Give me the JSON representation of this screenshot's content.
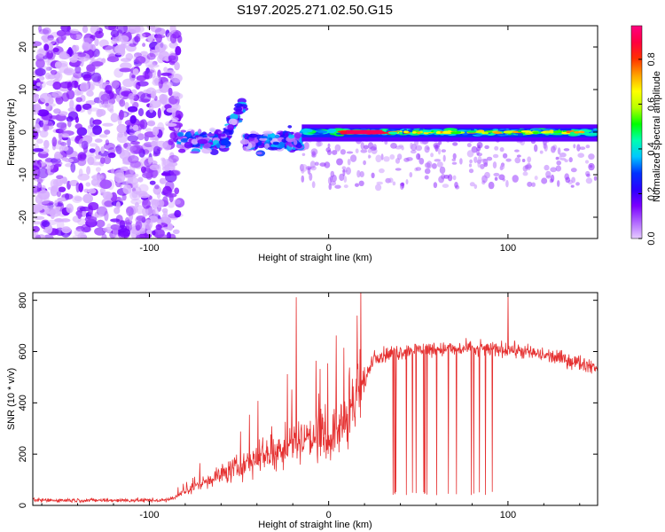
{
  "figure_title": "S197.2025.271.02.50.G15",
  "chart_data": [
    {
      "type": "heatmap",
      "title": "S197.2025.271.02.50.G15",
      "xlabel": "Height of straight line (km)",
      "ylabel": "Frequency (Hz)",
      "xlim": [
        -165,
        150
      ],
      "ylim": [
        -25,
        25
      ],
      "xticks": [
        -100,
        0,
        100
      ],
      "yticks": [
        -20,
        -10,
        0,
        10,
        20
      ],
      "colorbar": {
        "label": "Normalized spectral amplitude",
        "range": [
          0.0,
          0.95
        ],
        "ticks": [
          "0.0",
          "0.2",
          "0.4",
          "0.6",
          "0.8"
        ],
        "tick_values": [
          0.0,
          0.2,
          0.4,
          0.6,
          0.8
        ],
        "colormap": [
          "#e6ccff",
          "#b066ff",
          "#7a00ff",
          "#2a00ff",
          "#0033ff",
          "#00c8ff",
          "#00ffb0",
          "#00ff00",
          "#b8ff00",
          "#ffff00",
          "#ffa000",
          "#ff3000",
          "#ff0040",
          "#ff0080"
        ]
      },
      "regions": [
        {
          "name": "noise",
          "x_range": [
            -165,
            -83
          ],
          "freq_range": [
            -25,
            25
          ],
          "amplitude": 0.05
        },
        {
          "name": "turbulent",
          "x_range": [
            -83,
            -15
          ],
          "freq_center": -2,
          "freq_spread": 4,
          "amplitude": 0.25
        },
        {
          "name": "stable-line",
          "x_range": [
            -15,
            150
          ],
          "freq_center": 0,
          "freq_spread": 1,
          "amplitude": 0.4
        },
        {
          "name": "peak",
          "x_range": [
            10,
            30
          ],
          "freq_center": 0,
          "amplitude": 0.95
        }
      ]
    },
    {
      "type": "line",
      "xlabel": "Height of straight line (km)",
      "ylabel": "SNR (10 * v/v)",
      "xlim": [
        -165,
        150
      ],
      "ylim": [
        0,
        830
      ],
      "xticks": [
        -100,
        0,
        100
      ],
      "yticks": [
        0,
        200,
        400,
        600,
        800
      ],
      "color": "#e53030",
      "profile": [
        {
          "x": -165,
          "y": 20
        },
        {
          "x": -90,
          "y": 20
        },
        {
          "x": -80,
          "y": 50
        },
        {
          "x": -70,
          "y": 90
        },
        {
          "x": -50,
          "y": 150
        },
        {
          "x": -40,
          "y": 190
        },
        {
          "x": -30,
          "y": 210
        },
        {
          "x": -15,
          "y": 260
        },
        {
          "x": 0,
          "y": 260
        },
        {
          "x": 10,
          "y": 330
        },
        {
          "x": 20,
          "y": 480
        },
        {
          "x": 25,
          "y": 580
        },
        {
          "x": 50,
          "y": 610
        },
        {
          "x": 100,
          "y": 610
        },
        {
          "x": 125,
          "y": 580
        },
        {
          "x": 150,
          "y": 540
        }
      ],
      "spikes": [
        {
          "x": -18,
          "y": 812
        },
        {
          "x": 100,
          "y": 830
        }
      ],
      "dropouts": {
        "x_range": [
          28,
          98
        ],
        "low_value": 40
      }
    }
  ]
}
